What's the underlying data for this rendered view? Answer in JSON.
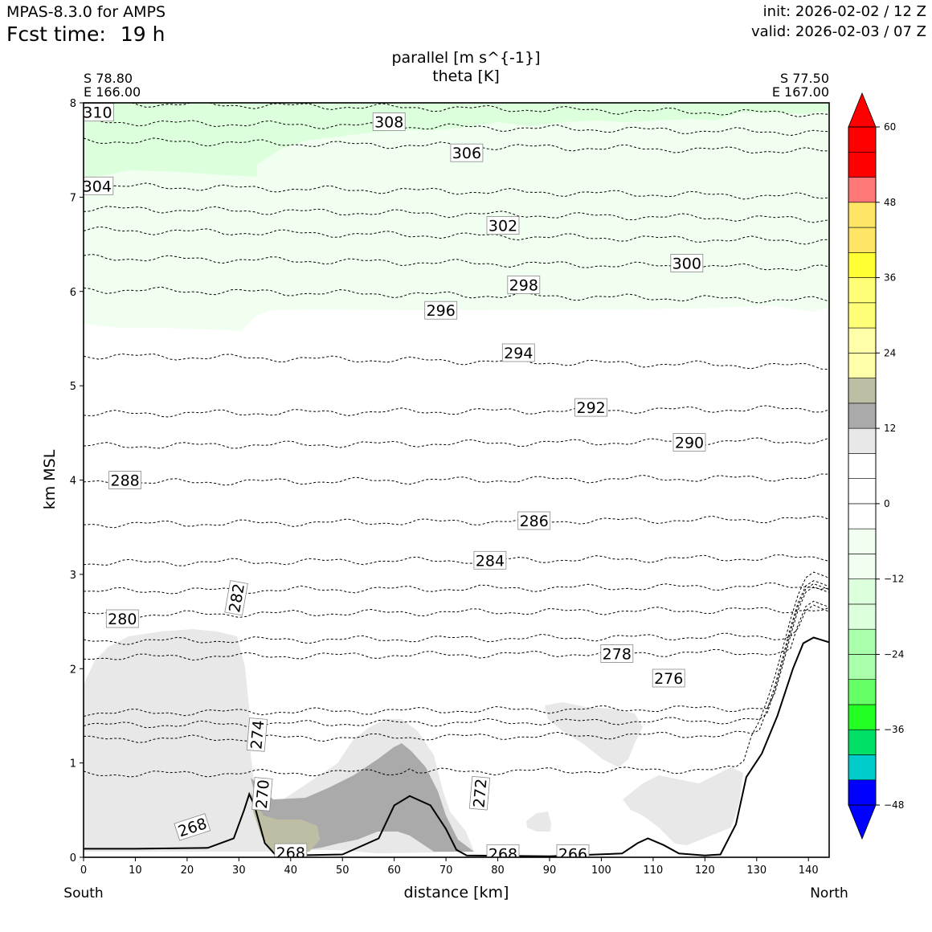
{
  "header": {
    "model": "MPAS-8.3.0 for AMPS",
    "fcst_label": "Fcst time:",
    "fcst_value": "19 h",
    "init": "init: 2026-02-02 / 12 Z",
    "valid": "valid: 2026-02-03 / 07 Z"
  },
  "chart_data": {
    "type": "cross-section",
    "title_line1": "parallel [m s^{-1}]",
    "title_line2": "theta [K]",
    "corner_left": [
      "S 78.80",
      "E 166.00"
    ],
    "corner_right": [
      "S 77.50",
      "E 167.00"
    ],
    "xlabel": "distance [km]",
    "ylabel": "km MSL",
    "x_end_labels": [
      "South",
      "North"
    ],
    "xlim": [
      0,
      144
    ],
    "ylim": [
      0,
      8
    ],
    "xticks": [
      "0",
      "10",
      "20",
      "30",
      "40",
      "50",
      "60",
      "70",
      "80",
      "90",
      "100",
      "110",
      "120",
      "130",
      "140"
    ],
    "yticks": [
      "0",
      "1",
      "2",
      "3",
      "4",
      "5",
      "6",
      "7",
      "8"
    ],
    "terrain_km": [
      [
        0,
        0.09
      ],
      [
        10,
        0.09
      ],
      [
        24,
        0.1
      ],
      [
        29,
        0.2
      ],
      [
        31,
        0.5
      ],
      [
        32,
        0.67
      ],
      [
        33,
        0.55
      ],
      [
        35,
        0.15
      ],
      [
        37,
        0.03
      ],
      [
        40,
        0.02
      ],
      [
        50,
        0.03
      ],
      [
        57,
        0.2
      ],
      [
        60,
        0.55
      ],
      [
        63,
        0.65
      ],
      [
        67,
        0.55
      ],
      [
        70,
        0.3
      ],
      [
        72,
        0.08
      ],
      [
        74,
        0.02
      ],
      [
        90,
        0.01
      ],
      [
        104,
        0.04
      ],
      [
        107,
        0.15
      ],
      [
        109,
        0.2
      ],
      [
        112,
        0.13
      ],
      [
        115,
        0.04
      ],
      [
        120,
        0.02
      ],
      [
        123,
        0.03
      ],
      [
        126,
        0.35
      ],
      [
        128,
        0.85
      ],
      [
        131,
        1.1
      ],
      [
        134,
        1.5
      ],
      [
        137,
        2.0
      ],
      [
        139,
        2.27
      ],
      [
        141,
        2.33
      ],
      [
        144,
        2.28
      ]
    ],
    "theta_contours": [
      {
        "theta": 310,
        "y0": 8.0
      },
      {
        "theta": 308,
        "y0": 7.8
      },
      {
        "theta": 306,
        "y0": 7.6
      },
      {
        "theta": 304,
        "y0": 7.12
      },
      {
        "theta": 302,
        "y0": 6.88
      },
      {
        "theta": 300,
        "y0": 6.65
      },
      {
        "theta": 298,
        "y0": 6.36
      },
      {
        "theta": 296,
        "y0": 6.02
      },
      {
        "theta": 294,
        "y0": 5.32
      },
      {
        "theta": 292,
        "y0": 4.7
      },
      {
        "theta": 290,
        "y0": 4.36
      },
      {
        "theta": 288,
        "y0": 3.97
      },
      {
        "theta": 286,
        "y0": 3.53
      },
      {
        "theta": 284,
        "y0": 3.12
      },
      {
        "theta": 282,
        "y0": 2.82
      },
      {
        "theta": 280,
        "y0": 2.57
      },
      {
        "theta": 278,
        "y0": 2.29
      },
      {
        "theta": 276,
        "y0": 2.12
      },
      {
        "theta": 274,
        "y0": 1.53
      },
      {
        "theta": 272,
        "y0": 1.4
      },
      {
        "theta": 270,
        "y0": 1.25
      },
      {
        "theta": 268,
        "y0": 0.88
      }
    ],
    "contour_labels": [
      {
        "text": "310",
        "x": 2.7,
        "y": 7.9,
        "rot": 0
      },
      {
        "text": "308",
        "x": 59,
        "y": 7.8,
        "rot": 0
      },
      {
        "text": "306",
        "x": 74,
        "y": 7.47,
        "rot": 0
      },
      {
        "text": "304",
        "x": 2.6,
        "y": 7.12,
        "rot": 0
      },
      {
        "text": "302",
        "x": 81,
        "y": 6.7,
        "rot": 0
      },
      {
        "text": "300",
        "x": 116.5,
        "y": 6.3,
        "rot": 0
      },
      {
        "text": "298",
        "x": 85,
        "y": 6.07,
        "rot": 0
      },
      {
        "text": "296",
        "x": 69,
        "y": 5.8,
        "rot": 0
      },
      {
        "text": "294",
        "x": 84,
        "y": 5.35,
        "rot": 0
      },
      {
        "text": "292",
        "x": 98,
        "y": 4.77,
        "rot": 0
      },
      {
        "text": "290",
        "x": 117,
        "y": 4.4,
        "rot": 0
      },
      {
        "text": "288",
        "x": 8,
        "y": 4.0,
        "rot": 0
      },
      {
        "text": "286",
        "x": 87,
        "y": 3.57,
        "rot": 0
      },
      {
        "text": "284",
        "x": 78.5,
        "y": 3.15,
        "rot": 0
      },
      {
        "text": "282",
        "x": 29.5,
        "y": 2.75,
        "rot": -80
      },
      {
        "text": "280",
        "x": 7.5,
        "y": 2.53,
        "rot": 0
      },
      {
        "text": "278",
        "x": 103,
        "y": 2.16,
        "rot": 0
      },
      {
        "text": "276",
        "x": 113,
        "y": 1.9,
        "rot": 0
      },
      {
        "text": "274",
        "x": 33.5,
        "y": 1.3,
        "rot": -85
      },
      {
        "text": "272",
        "x": 76.5,
        "y": 0.68,
        "rot": -85
      },
      {
        "text": "270",
        "x": 34.5,
        "y": 0.67,
        "rot": -85
      },
      {
        "text": "268",
        "x": 21,
        "y": 0.32,
        "rot": -18
      },
      {
        "text": "268",
        "x": 40,
        "y": 0.05,
        "rot": 0
      },
      {
        "text": "268",
        "x": 81,
        "y": 0.04,
        "rot": 0
      },
      {
        "text": "266",
        "x": 94.5,
        "y": 0.04,
        "rot": 0
      }
    ],
    "colorbar": {
      "ticks": [
        "60",
        "48",
        "36",
        "24",
        "12",
        "0",
        "−12",
        "−24",
        "−36",
        "−48"
      ],
      "tick_values": [
        60,
        48,
        36,
        24,
        12,
        0,
        -12,
        -24,
        -36,
        -48
      ],
      "levels": [
        -48,
        -44,
        -40,
        -36,
        -32,
        -28,
        -24,
        -20,
        -16,
        -12,
        -8,
        -4,
        0,
        4,
        8,
        12,
        16,
        20,
        24,
        28,
        32,
        36,
        40,
        44,
        48,
        52,
        56,
        60
      ],
      "colors": [
        "#0000ff",
        "#00cccc",
        "#00e066",
        "#22ff22",
        "#66ff66",
        "#aaffaa",
        "#dcffdc",
        "#f0fff0",
        "#ffffff",
        "#ffffff",
        "#e8e8e8",
        "#aaaaaa",
        "#bebea5",
        "#ffffaa",
        "#ffff77",
        "#ffff33",
        "#ffe566",
        "#ff7777",
        "#ff0000"
      ],
      "band_levels": [
        -48,
        -44,
        -40,
        -36,
        -32,
        -28,
        -24,
        -20,
        -16,
        -12,
        -8,
        -4,
        0,
        4,
        8,
        12,
        16,
        20,
        24,
        28,
        32,
        36,
        40,
        44,
        48,
        52,
        56,
        60
      ],
      "extend_colors": {
        "max": "#ff0000",
        "min": "#0000ff"
      }
    },
    "fill_colors": {
      "green_light": "#f0fff0",
      "green_mid": "#dcffdc",
      "gray_light": "#e8e8e8",
      "gray_dark": "#aaaaaa",
      "tan": "#bebea5"
    }
  }
}
